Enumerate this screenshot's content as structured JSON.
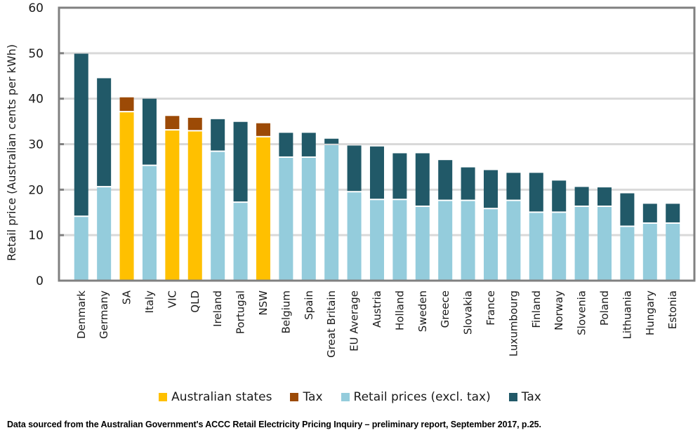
{
  "chart_data": {
    "type": "bar",
    "stacked": true,
    "title": "",
    "xlabel": "",
    "ylabel": "Retail price (Australian cents per kWh)",
    "ylim": [
      0,
      60
    ],
    "yticks": [
      0,
      10,
      20,
      30,
      40,
      50,
      60
    ],
    "grid": true,
    "legend_position": "bottom",
    "categories": [
      "Denmark",
      "Germany",
      "SA",
      "Italy",
      "VIC",
      "QLD",
      "Ireland",
      "Portugal",
      "NSW",
      "Belgium",
      "Spain",
      "Great Britain",
      "EU Average",
      "Austria",
      "Holland",
      "Sweden",
      "Greece",
      "Slovakia",
      "France",
      "Luxumbourg",
      "Finland",
      "Norway",
      "Slovenia",
      "Poland",
      "Lithuania",
      "Hungary",
      "Estonia"
    ],
    "is_australian": [
      false,
      false,
      true,
      false,
      true,
      true,
      false,
      false,
      true,
      false,
      false,
      false,
      false,
      false,
      false,
      false,
      false,
      false,
      false,
      false,
      false,
      false,
      false,
      false,
      false,
      false,
      false
    ],
    "series": [
      {
        "name": "Retail price (excl. tax)",
        "values": [
          14.0,
          20.5,
          37.0,
          25.2,
          33.0,
          32.8,
          28.3,
          17.1,
          31.5,
          27.0,
          27.0,
          29.8,
          19.4,
          17.7,
          17.7,
          16.2,
          17.5,
          17.5,
          15.7,
          17.5,
          14.9,
          14.9,
          16.2,
          16.2,
          11.8,
          12.5,
          12.5
        ]
      },
      {
        "name": "Tax",
        "values": [
          35.9,
          24.0,
          3.3,
          14.8,
          3.2,
          3.0,
          7.2,
          17.8,
          3.1,
          5.5,
          5.5,
          1.4,
          10.3,
          11.8,
          10.3,
          11.8,
          9.0,
          7.4,
          8.6,
          6.2,
          8.8,
          7.1,
          4.4,
          4.3,
          7.4,
          4.4,
          4.4
        ]
      }
    ],
    "colors": {
      "australian_base": "#FFC000",
      "australian_tax": "#9C4A06",
      "retail_base": "#94CCDC",
      "retail_tax": "#215968",
      "grid": "#D9D9D9",
      "axis": "#808080"
    },
    "legend": [
      {
        "label": "Australian states",
        "color": "#FFC000"
      },
      {
        "label": "Tax",
        "color": "#9C4A06"
      },
      {
        "label": "Retail prices (excl. tax)",
        "color": "#94CCDC"
      },
      {
        "label": "Tax",
        "color": "#215968"
      }
    ]
  },
  "source_note": "Data sourced from the Australian Government's ACCC Retail Electricity Pricing Inquiry – preliminary report, September 2017, p.25."
}
